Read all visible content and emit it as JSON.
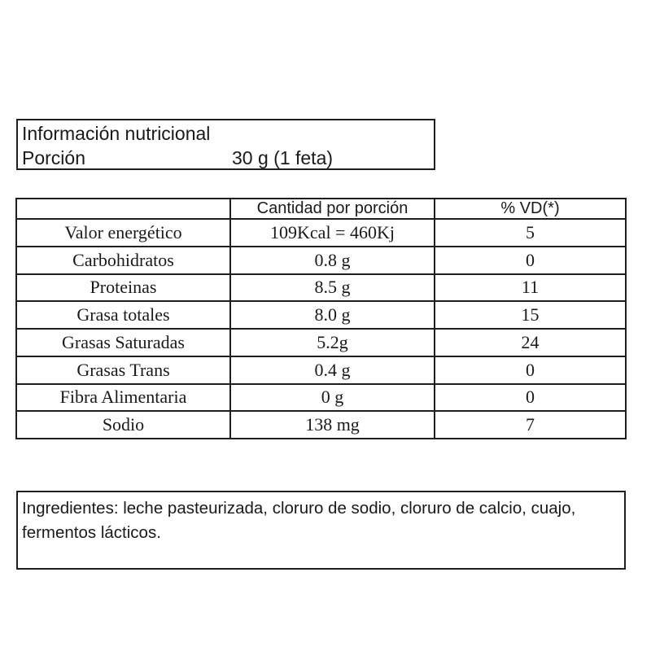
{
  "colors": {
    "background": "#ffffff",
    "text": "#1a1a1a",
    "border": "#1f1f1f"
  },
  "header_box": {
    "title": "Información nutricional",
    "portion_label": "Porción",
    "portion_value": "30 g (1 feta)"
  },
  "nutrition_table": {
    "columns": [
      "",
      "Cantidad por porción",
      "% VD(*)"
    ],
    "rows": [
      {
        "name": "Valor energético",
        "amount": "109Kcal = 460Kj",
        "vd": "5"
      },
      {
        "name": "Carbohidratos",
        "amount": "0.8 g",
        "vd": "0"
      },
      {
        "name": "Proteinas",
        "amount": "8.5 g",
        "vd": "11"
      },
      {
        "name": "Grasa totales",
        "amount": "8.0 g",
        "vd": "15"
      },
      {
        "name": "Grasas Saturadas",
        "amount": "5.2g",
        "vd": "24"
      },
      {
        "name": "Grasas Trans",
        "amount": "0.4 g",
        "vd": "0"
      },
      {
        "name": "Fibra Alimentaria",
        "amount": "0 g",
        "vd": "0"
      },
      {
        "name": "Sodio",
        "amount": "138 mg",
        "vd": "7"
      }
    ]
  },
  "ingredients": {
    "full_text": "Ingredientes: leche pasteurizada, cloruro de sodio, cloruro de calcio, cuajo, fermentos lácticos.",
    "lines": [
      "Ingredientes: leche pasteurizada, cloruro de sodio, cloruro de calcio, cuajo,",
      "fermentos lácticos."
    ]
  }
}
